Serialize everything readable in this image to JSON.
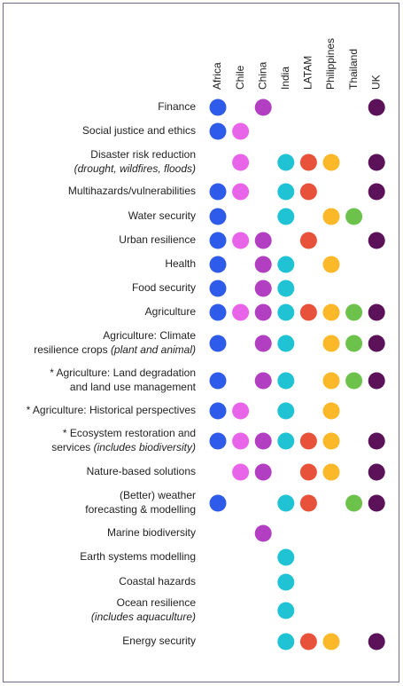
{
  "chart_data": {
    "type": "dot-matrix",
    "columns": [
      {
        "name": "Africa",
        "color": "#2f5bea"
      },
      {
        "name": "Chile",
        "color": "#e864e8"
      },
      {
        "name": "China",
        "color": "#b23fc2"
      },
      {
        "name": "India",
        "color": "#1fc3d3"
      },
      {
        "name": "LATAM",
        "color": "#e8523b"
      },
      {
        "name": "Philippines",
        "color": "#fbb829"
      },
      {
        "name": "Thailand",
        "color": "#6cc24a"
      },
      {
        "name": "UK",
        "color": "#5c1259"
      }
    ],
    "rows": [
      {
        "lines": [
          {
            "text": "Finance"
          }
        ],
        "values": [
          1,
          0,
          1,
          0,
          0,
          0,
          0,
          1
        ]
      },
      {
        "lines": [
          {
            "text": "Social justice and ethics"
          }
        ],
        "values": [
          1,
          1,
          0,
          0,
          0,
          0,
          0,
          0
        ]
      },
      {
        "lines": [
          {
            "text": "Disaster risk reduction"
          },
          {
            "note": "(drought, wildfires, floods)"
          }
        ],
        "values": [
          0,
          1,
          0,
          1,
          1,
          1,
          0,
          1
        ]
      },
      {
        "lines": [
          {
            "text": "Multihazards/vulnerabilities"
          }
        ],
        "values": [
          1,
          1,
          0,
          1,
          1,
          0,
          0,
          1
        ]
      },
      {
        "lines": [
          {
            "text": "Water security"
          }
        ],
        "values": [
          1,
          0,
          0,
          1,
          0,
          1,
          1,
          0
        ]
      },
      {
        "lines": [
          {
            "text": "Urban resilience"
          }
        ],
        "values": [
          1,
          1,
          1,
          0,
          1,
          0,
          0,
          1
        ]
      },
      {
        "lines": [
          {
            "text": "Health"
          }
        ],
        "values": [
          1,
          0,
          1,
          1,
          0,
          1,
          0,
          0
        ]
      },
      {
        "lines": [
          {
            "text": "Food security"
          }
        ],
        "values": [
          1,
          0,
          1,
          1,
          0,
          0,
          0,
          0
        ]
      },
      {
        "lines": [
          {
            "text": "Agriculture"
          }
        ],
        "values": [
          1,
          1,
          1,
          1,
          1,
          1,
          1,
          1
        ]
      },
      {
        "lines": [
          {
            "text": "Agriculture: Climate"
          },
          {
            "text": "resilience crops",
            "note": "(plant and animal)"
          }
        ],
        "values": [
          1,
          0,
          1,
          1,
          0,
          1,
          1,
          1
        ]
      },
      {
        "lines": [
          {
            "text": "* Agriculture: Land degradation"
          },
          {
            "text": "and land use management"
          }
        ],
        "values": [
          1,
          0,
          1,
          1,
          0,
          1,
          1,
          1
        ]
      },
      {
        "lines": [
          {
            "text": "* Agriculture: Historical perspectives"
          }
        ],
        "values": [
          1,
          1,
          0,
          1,
          0,
          1,
          0,
          0
        ]
      },
      {
        "lines": [
          {
            "text": "* Ecosystem restoration and"
          },
          {
            "text": "services",
            "note": "(includes biodiversity)"
          }
        ],
        "values": [
          1,
          1,
          1,
          1,
          1,
          1,
          0,
          1
        ]
      },
      {
        "lines": [
          {
            "text": "Nature-based solutions"
          }
        ],
        "values": [
          0,
          1,
          1,
          0,
          1,
          1,
          0,
          1
        ]
      },
      {
        "lines": [
          {
            "text": "(Better) weather"
          },
          {
            "text": "forecasting & modelling"
          }
        ],
        "values": [
          1,
          0,
          0,
          1,
          1,
          0,
          1,
          1
        ]
      },
      {
        "lines": [
          {
            "text": "Marine biodiversity"
          }
        ],
        "values": [
          0,
          0,
          1,
          0,
          0,
          0,
          0,
          0
        ]
      },
      {
        "lines": [
          {
            "text": "Earth systems modelling"
          }
        ],
        "values": [
          0,
          0,
          0,
          1,
          0,
          0,
          0,
          0
        ]
      },
      {
        "lines": [
          {
            "text": "Coastal hazards"
          }
        ],
        "values": [
          0,
          0,
          0,
          1,
          0,
          0,
          0,
          0
        ]
      },
      {
        "lines": [
          {
            "text": "Ocean resilience"
          },
          {
            "note": "(includes aquaculture)"
          }
        ],
        "values": [
          0,
          0,
          0,
          1,
          0,
          0,
          0,
          0
        ]
      },
      {
        "lines": [
          {
            "text": "Energy security"
          }
        ],
        "values": [
          0,
          0,
          0,
          1,
          1,
          1,
          0,
          1
        ]
      }
    ]
  }
}
